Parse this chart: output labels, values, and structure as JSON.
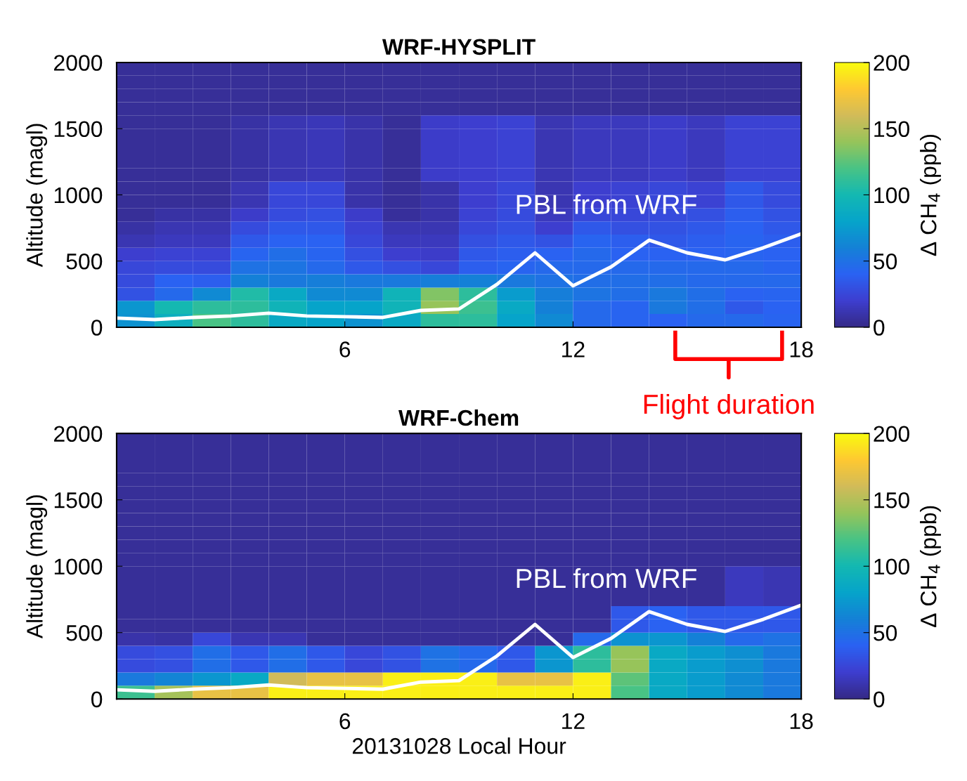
{
  "chart_data": [
    {
      "type": "heatmap",
      "title": "WRF-HYSPLIT",
      "ylabel": "Altitude (magl)",
      "clabel": "Δ CH$_{4}$ (ppb)",
      "x": [
        0.5,
        1.5,
        2.5,
        3.5,
        4.5,
        5.5,
        6.5,
        7.5,
        8.5,
        9.5,
        10.5,
        11.5,
        12.5,
        13.5,
        14.5,
        15.5,
        16.5,
        17.5
      ],
      "xlim": [
        0,
        18
      ],
      "xticks": [
        6,
        12,
        18
      ],
      "ylim": [
        0,
        2000
      ],
      "yticks": [
        0,
        500,
        1000,
        1500,
        2000
      ],
      "clim": [
        0,
        200
      ],
      "cticks": [
        0,
        50,
        100,
        150,
        200
      ],
      "grid": false,
      "cells": [
        [
          5,
          5,
          5,
          5,
          5,
          5,
          5,
          5,
          5,
          5,
          5,
          5,
          5,
          5,
          5,
          5,
          5,
          5
        ],
        [
          5,
          5,
          5,
          5,
          5,
          5,
          5,
          5,
          5,
          5,
          5,
          5,
          5,
          5,
          5,
          5,
          5,
          5
        ],
        [
          5,
          5,
          5,
          5,
          5,
          5,
          5,
          5,
          5,
          5,
          5,
          5,
          5,
          5,
          5,
          5,
          5,
          5
        ],
        [
          5,
          5,
          5,
          5,
          5,
          5,
          5,
          5,
          5,
          5,
          5,
          5,
          5,
          5,
          5,
          5,
          5,
          5
        ],
        [
          5,
          5,
          5,
          8,
          12,
          14,
          10,
          5,
          18,
          20,
          22,
          12,
          15,
          15,
          18,
          15,
          22,
          22
        ],
        [
          5,
          5,
          5,
          8,
          12,
          14,
          10,
          5,
          18,
          20,
          22,
          12,
          15,
          15,
          18,
          15,
          22,
          22
        ],
        [
          5,
          5,
          5,
          8,
          12,
          14,
          10,
          5,
          18,
          20,
          22,
          12,
          15,
          15,
          18,
          15,
          22,
          22
        ],
        [
          5,
          5,
          5,
          8,
          12,
          14,
          10,
          5,
          18,
          20,
          22,
          12,
          15,
          15,
          18,
          15,
          22,
          22
        ],
        [
          5,
          5,
          5,
          8,
          12,
          14,
          10,
          5,
          18,
          20,
          22,
          12,
          15,
          15,
          18,
          15,
          22,
          22
        ],
        [
          5,
          5,
          5,
          12,
          25,
          25,
          10,
          5,
          10,
          20,
          25,
          12,
          20,
          22,
          25,
          22,
          35,
          28
        ],
        [
          5,
          5,
          5,
          12,
          25,
          25,
          10,
          5,
          10,
          20,
          25,
          12,
          20,
          22,
          25,
          22,
          35,
          28
        ],
        [
          5,
          8,
          8,
          18,
          28,
          30,
          18,
          6,
          10,
          22,
          28,
          15,
          25,
          25,
          28,
          30,
          38,
          32
        ],
        [
          8,
          12,
          12,
          28,
          35,
          35,
          22,
          12,
          12,
          25,
          30,
          20,
          35,
          30,
          32,
          35,
          40,
          35
        ],
        [
          12,
          15,
          15,
          35,
          40,
          40,
          25,
          15,
          15,
          30,
          35,
          32,
          42,
          38,
          35,
          38,
          42,
          38
        ],
        [
          20,
          22,
          22,
          42,
          48,
          42,
          30,
          20,
          18,
          35,
          38,
          40,
          45,
          40,
          40,
          40,
          42,
          40
        ],
        [
          25,
          28,
          28,
          50,
          52,
          45,
          35,
          30,
          25,
          38,
          42,
          45,
          45,
          45,
          45,
          45,
          45,
          42
        ],
        [
          28,
          40,
          38,
          60,
          55,
          58,
          55,
          55,
          58,
          60,
          55,
          50,
          48,
          48,
          48,
          45,
          45,
          45
        ],
        [
          32,
          45,
          65,
          105,
          85,
          65,
          65,
          95,
          135,
          110,
          75,
          58,
          52,
          48,
          55,
          48,
          40,
          42
        ],
        [
          72,
          100,
          110,
          110,
          95,
          80,
          80,
          95,
          140,
          115,
          85,
          60,
          45,
          42,
          55,
          48,
          35,
          40
        ],
        [
          70,
          90,
          120,
          110,
          85,
          80,
          70,
          85,
          110,
          110,
          80,
          65,
          45,
          42,
          40,
          45,
          45,
          42
        ]
      ],
      "series": [
        {
          "type": "line",
          "color": "#ffffff",
          "x": [
            0,
            1,
            2,
            3,
            4,
            5,
            6,
            7,
            8,
            9,
            10,
            11,
            12,
            13,
            14,
            15,
            16,
            17,
            18
          ],
          "values": [
            69,
            58,
            74,
            85,
            106,
            85,
            80,
            74,
            127,
            138,
            324,
            562,
            313,
            456,
            658,
            562,
            509,
            600,
            706
          ]
        }
      ],
      "annotations": [
        "PBL from WRF",
        "Flight duration"
      ]
    },
    {
      "type": "heatmap",
      "title": "WRF-Chem",
      "ylabel": "Altitude (magl)",
      "xlabel": "20131028 Local Hour",
      "clabel": "Δ CH$_{4}$ (ppb)",
      "x": [
        0.5,
        1.5,
        2.5,
        3.5,
        4.5,
        5.5,
        6.5,
        7.5,
        8.5,
        9.5,
        10.5,
        11.5,
        12.5,
        13.5,
        14.5,
        15.5,
        16.5,
        17.5
      ],
      "xlim": [
        0,
        18
      ],
      "xticks": [
        6,
        12,
        18
      ],
      "ylim": [
        0,
        2000
      ],
      "yticks": [
        0,
        500,
        1000,
        1500,
        2000
      ],
      "clim": [
        0,
        200
      ],
      "cticks": [
        0,
        50,
        100,
        150,
        200
      ],
      "grid": false,
      "cells": [
        [
          5,
          5,
          5,
          5,
          5,
          5,
          5,
          5,
          5,
          5,
          5,
          5,
          5,
          5,
          5,
          5,
          5,
          5
        ],
        [
          5,
          5,
          5,
          5,
          5,
          5,
          5,
          5,
          5,
          5,
          5,
          5,
          5,
          5,
          5,
          5,
          5,
          5
        ],
        [
          5,
          5,
          5,
          5,
          5,
          5,
          5,
          5,
          5,
          5,
          5,
          5,
          5,
          5,
          5,
          5,
          5,
          5
        ],
        [
          5,
          5,
          5,
          5,
          5,
          5,
          5,
          5,
          5,
          5,
          5,
          5,
          5,
          5,
          5,
          5,
          5,
          5
        ],
        [
          5,
          5,
          5,
          5,
          5,
          5,
          5,
          5,
          5,
          5,
          5,
          5,
          5,
          5,
          5,
          5,
          5,
          5
        ],
        [
          5,
          5,
          5,
          5,
          5,
          5,
          5,
          5,
          5,
          5,
          5,
          5,
          5,
          5,
          5,
          5,
          5,
          5
        ],
        [
          5,
          5,
          5,
          5,
          5,
          5,
          5,
          5,
          5,
          5,
          5,
          5,
          5,
          5,
          5,
          5,
          5,
          5
        ],
        [
          5,
          5,
          5,
          5,
          5,
          5,
          5,
          5,
          5,
          5,
          5,
          5,
          5,
          5,
          5,
          5,
          5,
          5
        ],
        [
          5,
          5,
          5,
          5,
          5,
          5,
          5,
          5,
          5,
          5,
          5,
          5,
          5,
          5,
          5,
          5,
          5,
          5
        ],
        [
          5,
          5,
          5,
          5,
          5,
          5,
          5,
          5,
          5,
          5,
          5,
          5,
          5,
          5,
          5,
          5,
          5,
          5
        ],
        [
          5,
          5,
          5,
          5,
          5,
          5,
          5,
          5,
          5,
          5,
          5,
          5,
          5,
          5,
          5,
          5,
          15,
          12
        ],
        [
          5,
          5,
          5,
          5,
          5,
          5,
          5,
          5,
          5,
          5,
          5,
          5,
          5,
          5,
          5,
          5,
          15,
          12
        ],
        [
          5,
          5,
          5,
          5,
          5,
          5,
          5,
          5,
          5,
          5,
          5,
          5,
          5,
          5,
          5,
          5,
          15,
          12
        ],
        [
          5,
          5,
          5,
          5,
          5,
          5,
          5,
          5,
          5,
          5,
          5,
          5,
          5,
          35,
          40,
          35,
          35,
          35
        ],
        [
          5,
          5,
          5,
          5,
          5,
          5,
          5,
          5,
          5,
          5,
          5,
          5,
          5,
          35,
          40,
          35,
          35,
          35
        ],
        [
          10,
          8,
          25,
          12,
          12,
          5,
          5,
          5,
          5,
          5,
          5,
          5,
          45,
          70,
          72,
          60,
          45,
          50
        ],
        [
          28,
          30,
          48,
          35,
          48,
          35,
          25,
          32,
          50,
          45,
          35,
          72,
          110,
          140,
          85,
          75,
          68,
          55
        ],
        [
          28,
          30,
          48,
          35,
          48,
          35,
          25,
          32,
          50,
          45,
          35,
          72,
          110,
          140,
          85,
          75,
          68,
          55
        ],
        [
          55,
          62,
          72,
          85,
          160,
          170,
          170,
          195,
          195,
          195,
          170,
          170,
          195,
          125,
          85,
          75,
          65,
          55
        ],
        [
          115,
          145,
          170,
          170,
          195,
          195,
          195,
          195,
          195,
          195,
          195,
          195,
          195,
          120,
          85,
          75,
          65,
          55
        ]
      ],
      "series": [
        {
          "type": "line",
          "color": "#ffffff",
          "x": [
            0,
            1,
            2,
            3,
            4,
            5,
            6,
            7,
            8,
            9,
            10,
            11,
            12,
            13,
            14,
            15,
            16,
            17,
            18
          ],
          "values": [
            69,
            58,
            74,
            85,
            106,
            85,
            80,
            74,
            127,
            138,
            324,
            562,
            313,
            456,
            658,
            562,
            509,
            600,
            706
          ]
        }
      ],
      "annotations": [
        "PBL from WRF"
      ]
    }
  ]
}
